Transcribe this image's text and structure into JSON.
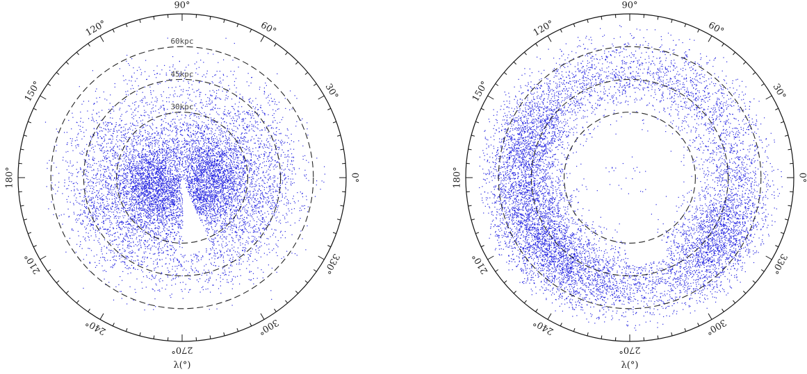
{
  "chart_data": [
    {
      "type": "scatter",
      "projection": "polar",
      "xlabel": "λ(°)",
      "angle_tick_labels": [
        "0°",
        "30°",
        "60°",
        "90°",
        "120°",
        "150°",
        "180°",
        "210°",
        "240°",
        "270°",
        "300°",
        "330°"
      ],
      "angle_ticks_deg": [
        0,
        30,
        60,
        90,
        120,
        150,
        180,
        210,
        240,
        270,
        300,
        330
      ],
      "radial_rings_kpc": [
        30,
        45,
        60
      ],
      "ring_labels": [
        "30kpc",
        "45kpc",
        "60kpc"
      ],
      "rmax_kpc": 75,
      "point_color": "#2020e0",
      "n_points": 9000,
      "distribution": "concentrated within ~30 kpc, two lobes split by an empty wedge near λ≈280°"
    },
    {
      "type": "scatter",
      "projection": "polar",
      "xlabel": "λ(°)",
      "angle_tick_labels": [
        "0°",
        "30°",
        "60°",
        "90°",
        "120°",
        "150°",
        "180°",
        "210°",
        "240°",
        "270°",
        "300°",
        "330°"
      ],
      "angle_ticks_deg": [
        0,
        30,
        60,
        90,
        120,
        150,
        180,
        210,
        240,
        270,
        300,
        330
      ],
      "radial_rings_kpc": [
        30,
        45,
        60
      ],
      "ring_labels": [
        "",
        "",
        ""
      ],
      "rmax_kpc": 75,
      "point_color": "#2020e0",
      "n_points": 10000,
      "distribution": "extended shell between ~30 and ~65 kpc, densest near λ≈180°–250° and λ≈320°–340°"
    }
  ]
}
